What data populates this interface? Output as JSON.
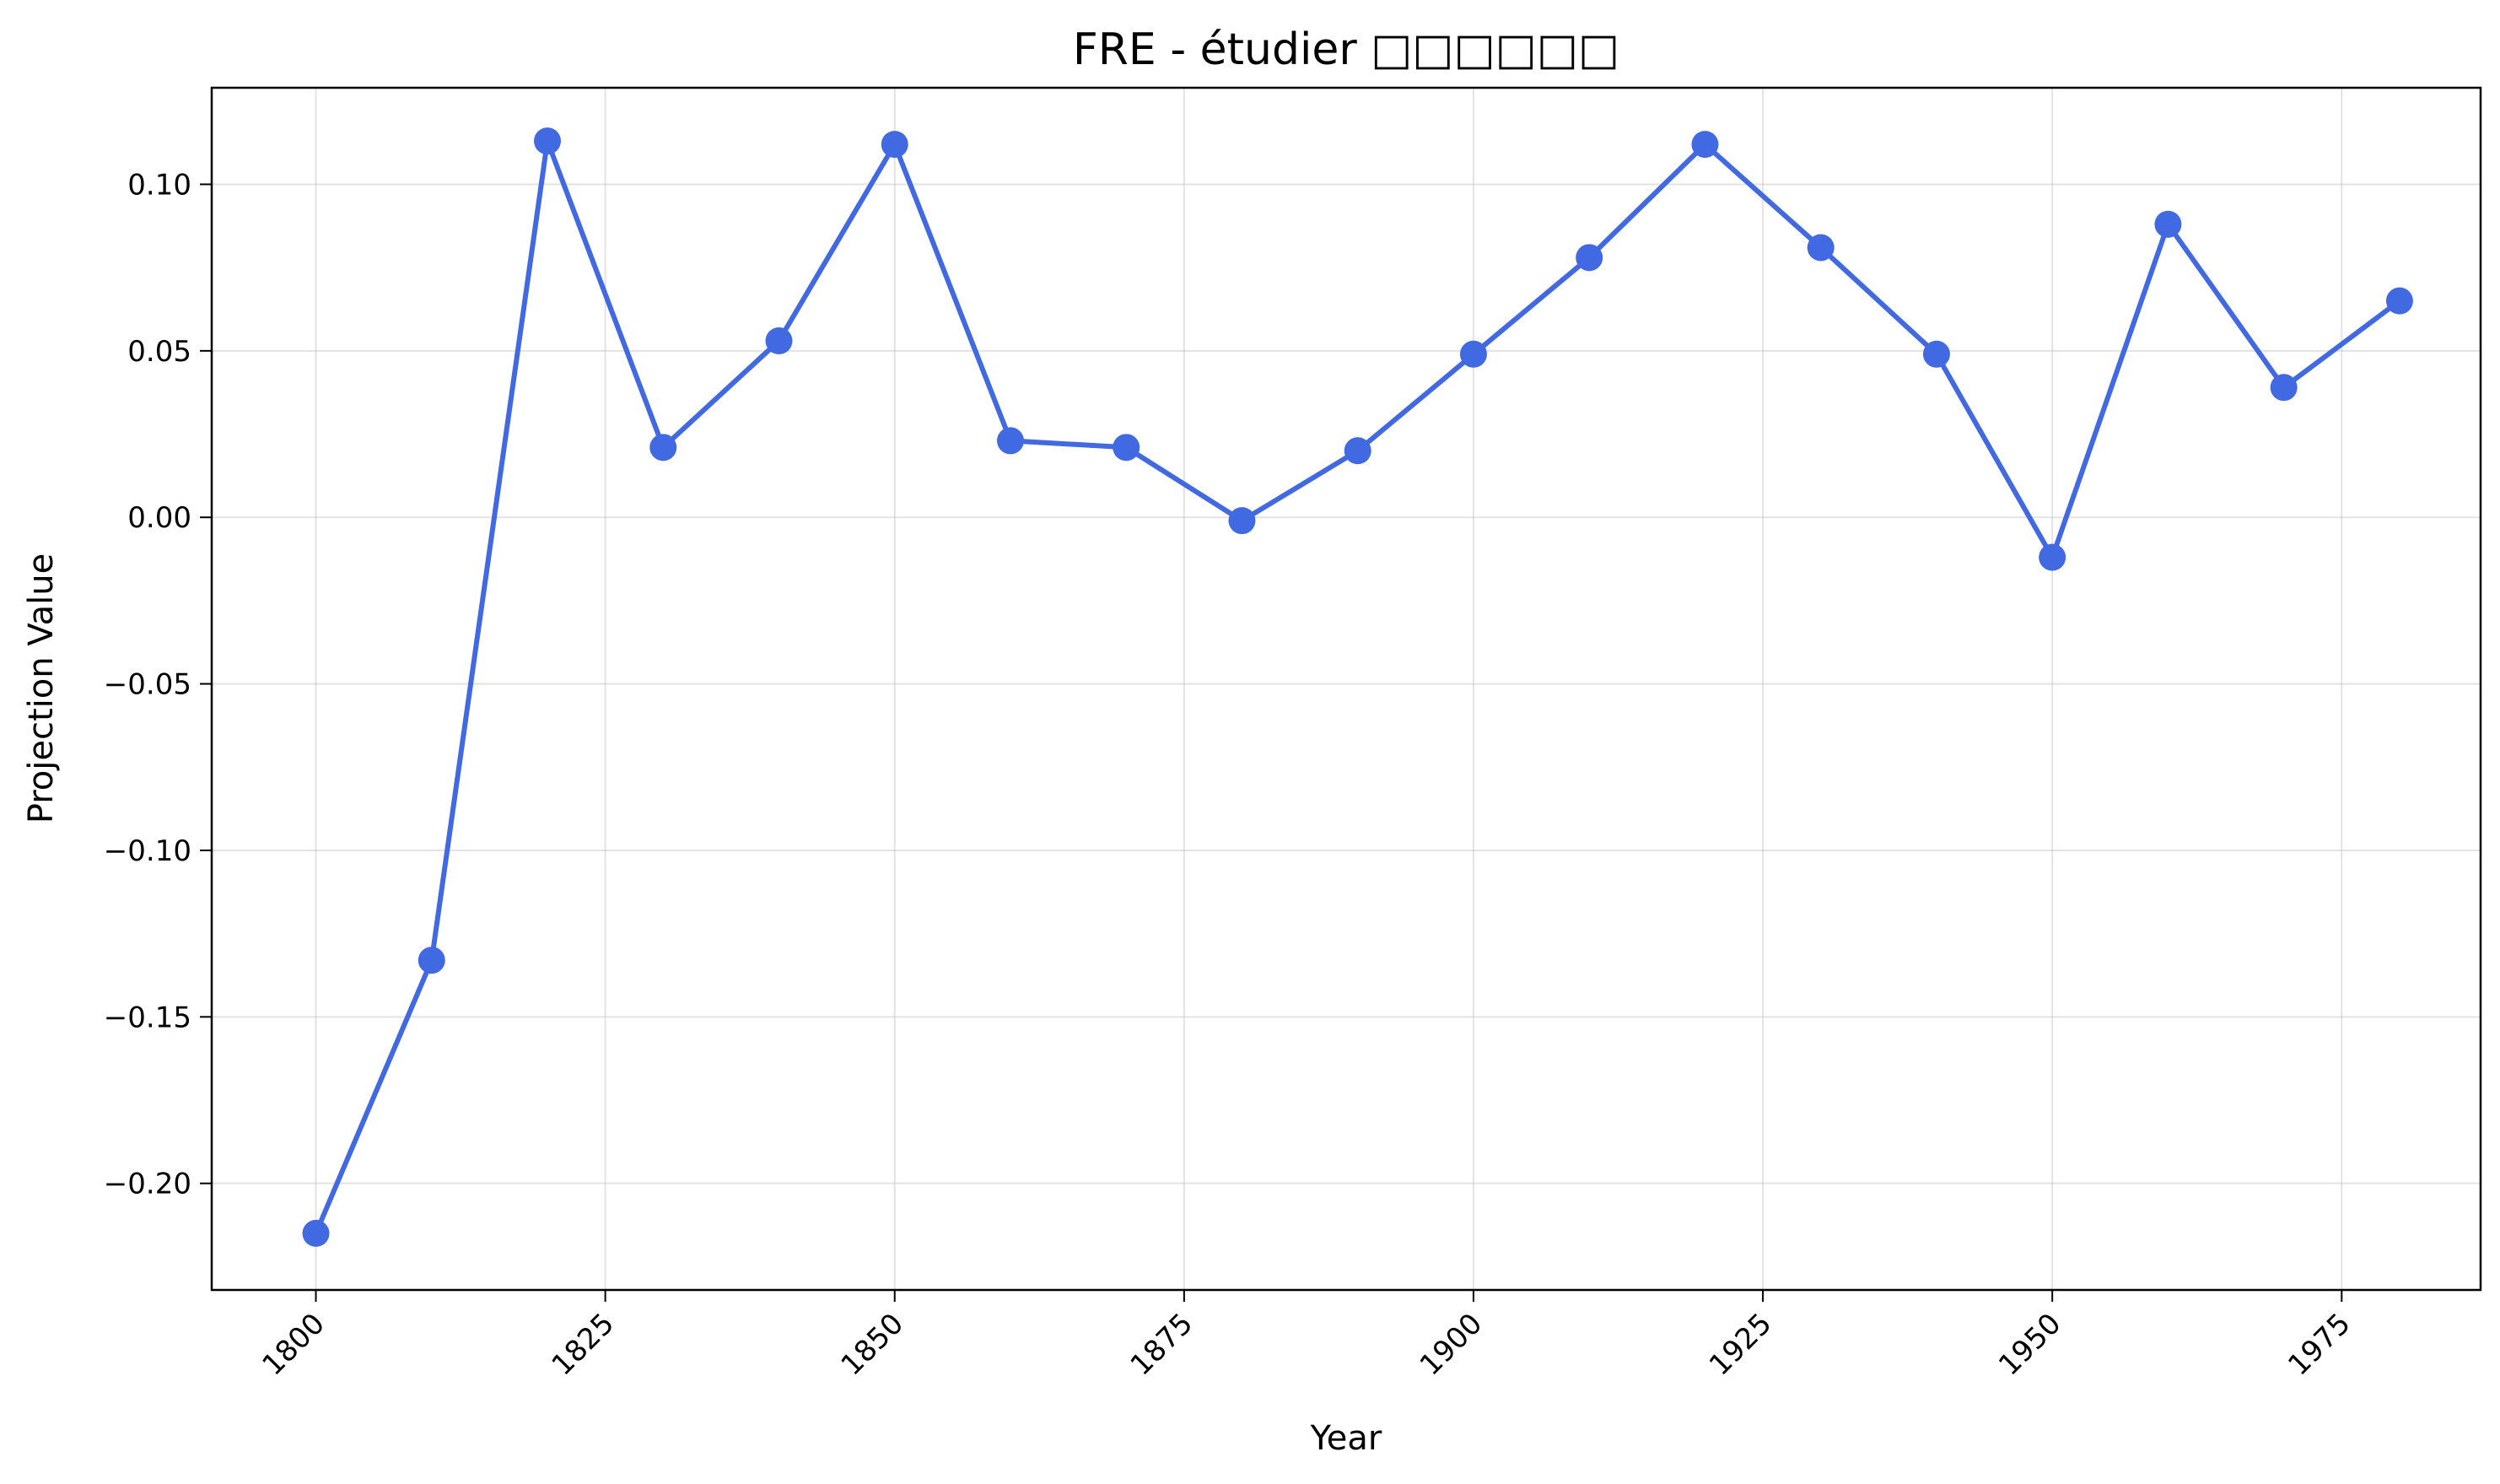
{
  "chart_data": {
    "type": "line",
    "title": "FRE - étudier □□□□□□",
    "xlabel": "Year",
    "ylabel": "Projection Value",
    "xlim": [
      1791,
      1987
    ],
    "ylim": [
      -0.232,
      0.129
    ],
    "x_ticks": [
      1800,
      1825,
      1850,
      1875,
      1900,
      1925,
      1950,
      1975
    ],
    "y_ticks": [
      -0.2,
      -0.15,
      -0.1,
      -0.05,
      0.0,
      0.05,
      0.1
    ],
    "y_tick_labels": [
      "−0.20",
      "−0.15",
      "−0.10",
      "−0.05",
      "0.00",
      "0.05",
      "0.10"
    ],
    "x_tick_labels": [
      "1800",
      "1825",
      "1850",
      "1875",
      "1900",
      "1925",
      "1950",
      "1975"
    ],
    "grid": true,
    "legend": "none",
    "series": [
      {
        "color": "#4169e1",
        "marker": "circle",
        "x": [
          1800,
          1810,
          1820,
          1830,
          1840,
          1850,
          1860,
          1870,
          1880,
          1890,
          1900,
          1910,
          1920,
          1930,
          1940,
          1950,
          1960,
          1970,
          1980
        ],
        "y": [
          -0.215,
          -0.133,
          0.113,
          0.021,
          0.053,
          0.112,
          0.023,
          0.021,
          -0.001,
          0.02,
          0.049,
          0.078,
          0.112,
          0.081,
          0.049,
          -0.012,
          0.088,
          0.039,
          0.065
        ]
      }
    ]
  }
}
